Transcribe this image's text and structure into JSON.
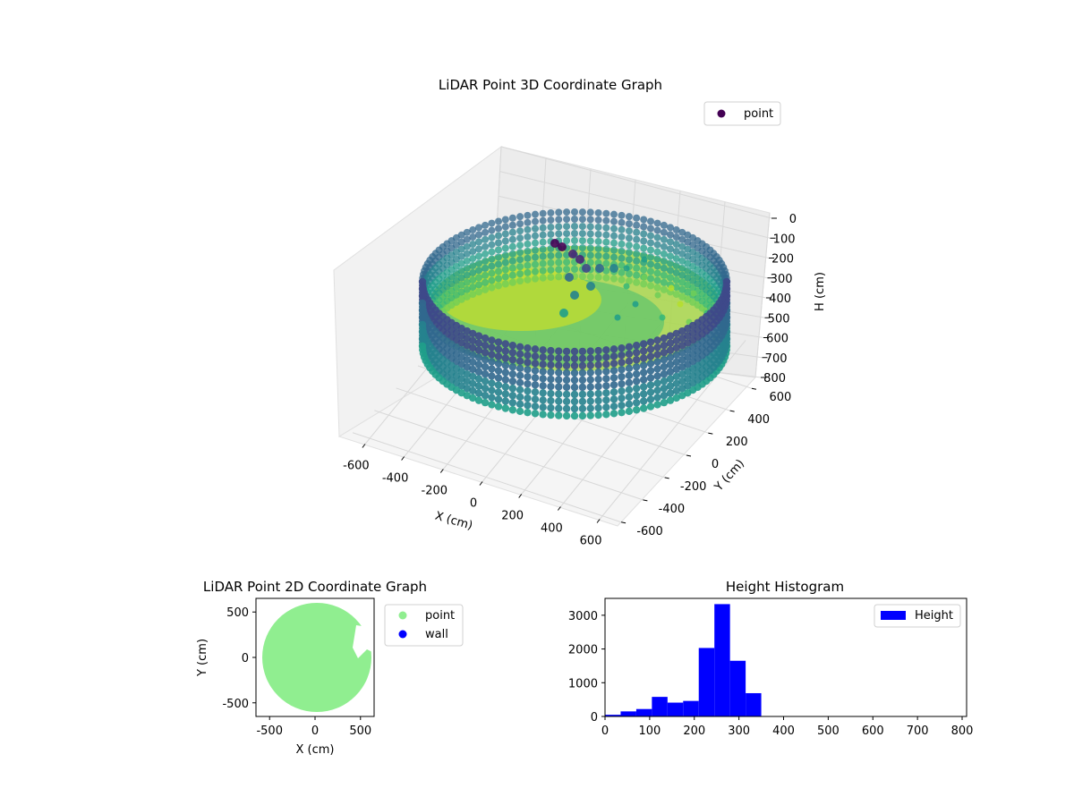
{
  "chart_data": [
    {
      "type": "scatter3d",
      "title": "LiDAR Point 3D Coordinate Graph",
      "xlabel": "X (cm)",
      "ylabel": "Y (cm)",
      "zlabel": "H (cm)",
      "xlim": [
        -650,
        650
      ],
      "ylim": [
        -650,
        650
      ],
      "zlim": [
        800,
        0
      ],
      "xticks": [
        "-600",
        "-400",
        "-200",
        "0",
        "200",
        "400",
        "600"
      ],
      "yticks": [
        "-600",
        "-400",
        "-200",
        "0",
        "200",
        "400",
        "600"
      ],
      "zticks": [
        "0",
        "100",
        "200",
        "300",
        "400",
        "500",
        "600",
        "700",
        "800"
      ],
      "legend": {
        "entries": [
          "point"
        ],
        "position": "top-right"
      },
      "colormap": "viridis",
      "grid": true,
      "series": [
        {
          "name": "point",
          "marker_color": "#440154",
          "wall_radius": 600,
          "wall_height_range": [
            200,
            650
          ],
          "interior_height_range": [
            0,
            400
          ],
          "sample_points": [
            {
              "x": -100,
              "y": 250,
              "h": 100
            },
            {
              "x": -60,
              "y": 300,
              "h": 120
            },
            {
              "x": 150,
              "y": 200,
              "h": 300
            },
            {
              "x": 300,
              "y": 0,
              "h": 350
            },
            {
              "x": 450,
              "y": -150,
              "h": 400
            },
            {
              "x": 500,
              "y": -300,
              "h": 420
            }
          ]
        }
      ]
    },
    {
      "type": "scatter",
      "title": "LiDAR Point 2D Coordinate Graph",
      "xlabel": "X (cm)",
      "ylabel": "Y (cm)",
      "xlim": [
        -650,
        650
      ],
      "ylim": [
        -650,
        650
      ],
      "xticks": [
        "-500",
        "0",
        "500"
      ],
      "yticks": [
        "-500",
        "0",
        "500"
      ],
      "legend": {
        "entries": [
          "point",
          "wall"
        ],
        "position": "outside-right"
      },
      "series": [
        {
          "name": "point",
          "color": "#90ee90",
          "region": "disk",
          "radius": 600
        },
        {
          "name": "wall",
          "color": "#0000ff",
          "points": []
        }
      ]
    },
    {
      "type": "bar",
      "title": "Height Histogram",
      "xlabel": "",
      "ylabel": "",
      "xlim": [
        0,
        810
      ],
      "ylim": [
        0,
        3500
      ],
      "xticks": [
        "0",
        "100",
        "200",
        "300",
        "400",
        "500",
        "600",
        "700",
        "800"
      ],
      "yticks": [
        "0",
        "1000",
        "2000",
        "3000"
      ],
      "legend": {
        "entries": [
          "Height"
        ],
        "position": "top-right"
      },
      "bin_width": 35,
      "series": [
        {
          "name": "Height",
          "color": "#0000ff",
          "bins": [
            {
              "x0": 0,
              "x1": 35,
              "count": 50
            },
            {
              "x0": 35,
              "x1": 70,
              "count": 150
            },
            {
              "x0": 70,
              "x1": 105,
              "count": 220
            },
            {
              "x0": 105,
              "x1": 140,
              "count": 580
            },
            {
              "x0": 140,
              "x1": 175,
              "count": 410
            },
            {
              "x0": 175,
              "x1": 210,
              "count": 460
            },
            {
              "x0": 210,
              "x1": 245,
              "count": 2030
            },
            {
              "x0": 245,
              "x1": 280,
              "count": 3330
            },
            {
              "x0": 280,
              "x1": 315,
              "count": 1650
            },
            {
              "x0": 315,
              "x1": 350,
              "count": 690
            }
          ]
        }
      ]
    }
  ]
}
